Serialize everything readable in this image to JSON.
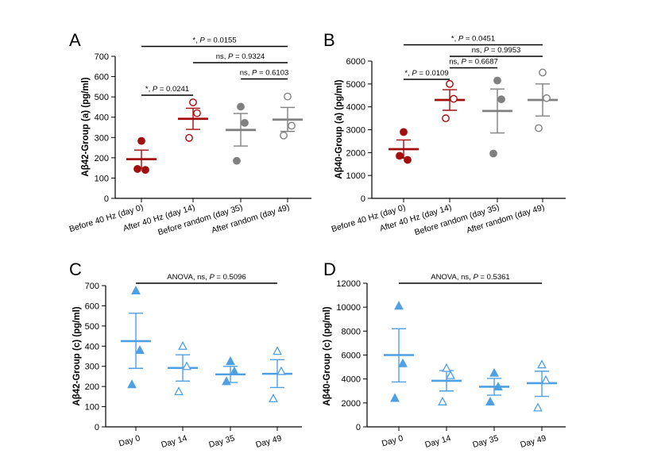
{
  "colors": {
    "dark_red": "#a30d0d",
    "gray": "#808080",
    "light_blue": "#4f9fe3",
    "axis": "#000000"
  },
  "chart_data": [
    {
      "panel": "A",
      "type": "scatter",
      "ylabel": "Aβ42-Group (a) (pg/ml)",
      "ylim": [
        0,
        700
      ],
      "yticks": [
        0,
        100,
        200,
        300,
        400,
        500,
        600,
        700
      ],
      "categories": [
        "Before 40 Hz (day 0)",
        "After 40 Hz (day 14)",
        "Before random (day 35)",
        "After random (day 49)"
      ],
      "series": [
        {
          "name": "Before 40 Hz (day 0)",
          "values": [
            283,
            140,
            145
          ],
          "mean": 193,
          "sem_upper": 238,
          "sem_lower": 150,
          "color": "dark_red",
          "marker": "filled-circle"
        },
        {
          "name": "After 40 Hz (day 14)",
          "values": [
            473,
            420,
            298
          ],
          "mean": 392,
          "sem_upper": 444,
          "sem_lower": 340,
          "color": "dark_red",
          "marker": "open-circle"
        },
        {
          "name": "Before random (day 35)",
          "values": [
            452,
            372,
            185
          ],
          "mean": 337,
          "sem_upper": 418,
          "sem_lower": 258,
          "color": "gray",
          "marker": "filled-circle"
        },
        {
          "name": "After random (day 49)",
          "values": [
            502,
            358,
            310
          ],
          "mean": 388,
          "sem_upper": 448,
          "sem_lower": 330,
          "color": "gray",
          "marker": "open-circle"
        }
      ],
      "annotations": [
        {
          "from": 0,
          "to": 1,
          "level": 0,
          "prefix": "*, ",
          "text": "P = 0.0241"
        },
        {
          "from": 2,
          "to": 3,
          "level": 1,
          "prefix": "ns, ",
          "text": "P = 0.6103"
        },
        {
          "from": 1,
          "to": 3,
          "level": 2,
          "prefix": "ns, ",
          "text": "P = 0.9324"
        },
        {
          "from": 0,
          "to": 3,
          "level": 3,
          "prefix": "*, ",
          "text": "P = 0.0155"
        }
      ]
    },
    {
      "panel": "B",
      "type": "scatter",
      "ylabel": "Aβ40-Group (a) (pg/ml)",
      "ylim": [
        0,
        6000
      ],
      "yticks": [
        0,
        1000,
        2000,
        3000,
        4000,
        5000,
        6000
      ],
      "categories": [
        "Before 40 Hz (day 0)",
        "After 40 Hz (day 14)",
        "Before random (day 35)",
        "After random (day 49)"
      ],
      "series": [
        {
          "name": "Before 40 Hz (day 0)",
          "values": [
            2900,
            1680,
            1860
          ],
          "mean": 2150,
          "sem_upper": 2550,
          "sem_lower": 1760,
          "color": "dark_red",
          "marker": "filled-circle"
        },
        {
          "name": "After 40 Hz (day 14)",
          "values": [
            5000,
            4350,
            3500
          ],
          "mean": 4300,
          "sem_upper": 4750,
          "sem_lower": 3850,
          "color": "dark_red",
          "marker": "open-circle"
        },
        {
          "name": "Before random (day 35)",
          "values": [
            5150,
            4330,
            1960
          ],
          "mean": 3820,
          "sem_upper": 4780,
          "sem_lower": 2860,
          "color": "gray",
          "marker": "filled-circle"
        },
        {
          "name": "After random (day 49)",
          "values": [
            5500,
            4380,
            3070
          ],
          "mean": 4300,
          "sem_upper": 5000,
          "sem_lower": 3600,
          "color": "gray",
          "marker": "open-circle"
        }
      ],
      "annotations": [
        {
          "from": 0,
          "to": 1,
          "level": 0,
          "prefix": "*, ",
          "text": "P = 0.0109"
        },
        {
          "from": 1,
          "to": 2,
          "level": 1,
          "prefix": "ns, ",
          "text": "P = 0.6687"
        },
        {
          "from": 1,
          "to": 3,
          "level": 2,
          "prefix": "ns, ",
          "text": "P = 0.9953"
        },
        {
          "from": 0,
          "to": 3,
          "level": 3,
          "prefix": "*, ",
          "text": "P = 0.0451"
        }
      ]
    },
    {
      "panel": "C",
      "type": "scatter",
      "ylabel": "Aβ42-Group (c) (pg/ml)",
      "ylim": [
        0,
        700
      ],
      "yticks": [
        0,
        100,
        200,
        300,
        400,
        500,
        600,
        700
      ],
      "categories": [
        "Day 0",
        "Day 14",
        "Day 35",
        "Day 49"
      ],
      "series": [
        {
          "name": "Day 0",
          "values": [
            675,
            380,
            210
          ],
          "mean": 425,
          "sem_upper": 563,
          "sem_lower": 290,
          "color": "light_blue",
          "marker": "filled-triangle"
        },
        {
          "name": "Day 14",
          "values": [
            400,
            300,
            175
          ],
          "mean": 292,
          "sem_upper": 357,
          "sem_lower": 227,
          "color": "light_blue",
          "marker": "open-triangle"
        },
        {
          "name": "Day 35",
          "values": [
            325,
            275,
            225
          ],
          "mean": 260,
          "sem_upper": 300,
          "sem_lower": 220,
          "color": "light_blue",
          "marker": "filled-triangle"
        },
        {
          "name": "Day 49",
          "values": [
            375,
            275,
            140
          ],
          "mean": 263,
          "sem_upper": 333,
          "sem_lower": 195,
          "color": "light_blue",
          "marker": "open-triangle"
        }
      ],
      "annotations": [
        {
          "from": 0,
          "to": 3,
          "level": 0,
          "prefix": "ANOVA, ns, ",
          "text": "P = 0.5096"
        }
      ]
    },
    {
      "panel": "D",
      "type": "scatter",
      "ylabel": "Aβ40-Group (c) (pg/ml)",
      "ylim": [
        0,
        12000
      ],
      "yticks": [
        0,
        2000,
        4000,
        6000,
        8000,
        10000,
        12000
      ],
      "categories": [
        "Day 0",
        "Day 14",
        "Day 35",
        "Day 49"
      ],
      "series": [
        {
          "name": "Day 0",
          "values": [
            10100,
            5300,
            2400
          ],
          "mean": 6000,
          "sem_upper": 8200,
          "sem_lower": 3750,
          "color": "light_blue",
          "marker": "filled-triangle"
        },
        {
          "name": "Day 14",
          "values": [
            4900,
            4300,
            2100
          ],
          "mean": 3850,
          "sem_upper": 4700,
          "sem_lower": 3000,
          "color": "light_blue",
          "marker": "open-triangle"
        },
        {
          "name": "Day 35",
          "values": [
            4500,
            3350,
            2100
          ],
          "mean": 3350,
          "sem_upper": 4050,
          "sem_lower": 2650,
          "color": "light_blue",
          "marker": "filled-triangle"
        },
        {
          "name": "Day 49",
          "values": [
            5200,
            3900,
            1600
          ],
          "mean": 3650,
          "sem_upper": 4650,
          "sem_lower": 2550,
          "color": "light_blue",
          "marker": "open-triangle"
        }
      ],
      "annotations": [
        {
          "from": 0,
          "to": 3,
          "level": 0,
          "prefix": "ANOVA, ns, ",
          "text": "P = 0.5361"
        }
      ]
    }
  ]
}
